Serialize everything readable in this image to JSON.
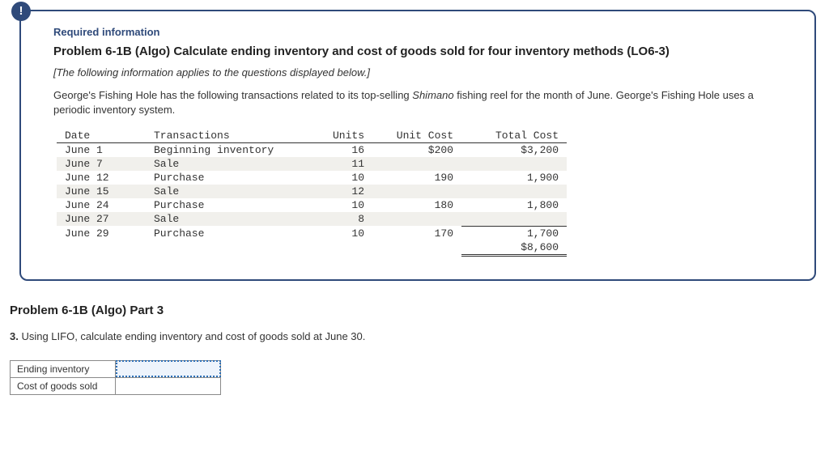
{
  "info": {
    "required_label": "Required information",
    "problem_title": "Problem 6-1B (Algo) Calculate ending inventory and cost of goods sold for four inventory methods (LO6-3)",
    "note": "[The following information applies to the questions displayed below.]",
    "body_line1_a": "George's Fishing Hole has the following transactions related to its top-selling ",
    "body_line1_brand": "Shimano",
    "body_line1_b": " fishing reel for the month of June. George's Fishing Hole uses a periodic inventory system."
  },
  "txn_table": {
    "headers": {
      "date": "Date",
      "txn": "Transactions",
      "units": "Units",
      "unit_cost": "Unit Cost",
      "total_cost": "Total Cost"
    },
    "rows": [
      {
        "date": "June 1",
        "txn": "Beginning inventory",
        "units": "16",
        "unit_cost": "$200",
        "total_cost": "$3,200",
        "shade": false
      },
      {
        "date": "June 7",
        "txn": "Sale",
        "units": "11",
        "unit_cost": "",
        "total_cost": "",
        "shade": true
      },
      {
        "date": "June 12",
        "txn": "Purchase",
        "units": "10",
        "unit_cost": "190",
        "total_cost": "1,900",
        "shade": false
      },
      {
        "date": "June 15",
        "txn": "Sale",
        "units": "12",
        "unit_cost": "",
        "total_cost": "",
        "shade": true
      },
      {
        "date": "June 24",
        "txn": "Purchase",
        "units": "10",
        "unit_cost": "180",
        "total_cost": "1,800",
        "shade": false
      },
      {
        "date": "June 27",
        "txn": "Sale",
        "units": "8",
        "unit_cost": "",
        "total_cost": "",
        "shade": true
      },
      {
        "date": "June 29",
        "txn": "Purchase",
        "units": "10",
        "unit_cost": "170",
        "total_cost": "1,700",
        "shade": false
      }
    ],
    "total": "$8,600"
  },
  "part": {
    "heading": "Problem 6-1B (Algo) Part 3",
    "q_num": "3.",
    "q_text": " Using LIFO, calculate ending inventory and cost of goods sold at June 30."
  },
  "answers": {
    "rows": [
      {
        "label": "Ending inventory",
        "value": "",
        "active": true
      },
      {
        "label": "Cost of goods sold",
        "value": "",
        "active": false
      }
    ]
  }
}
